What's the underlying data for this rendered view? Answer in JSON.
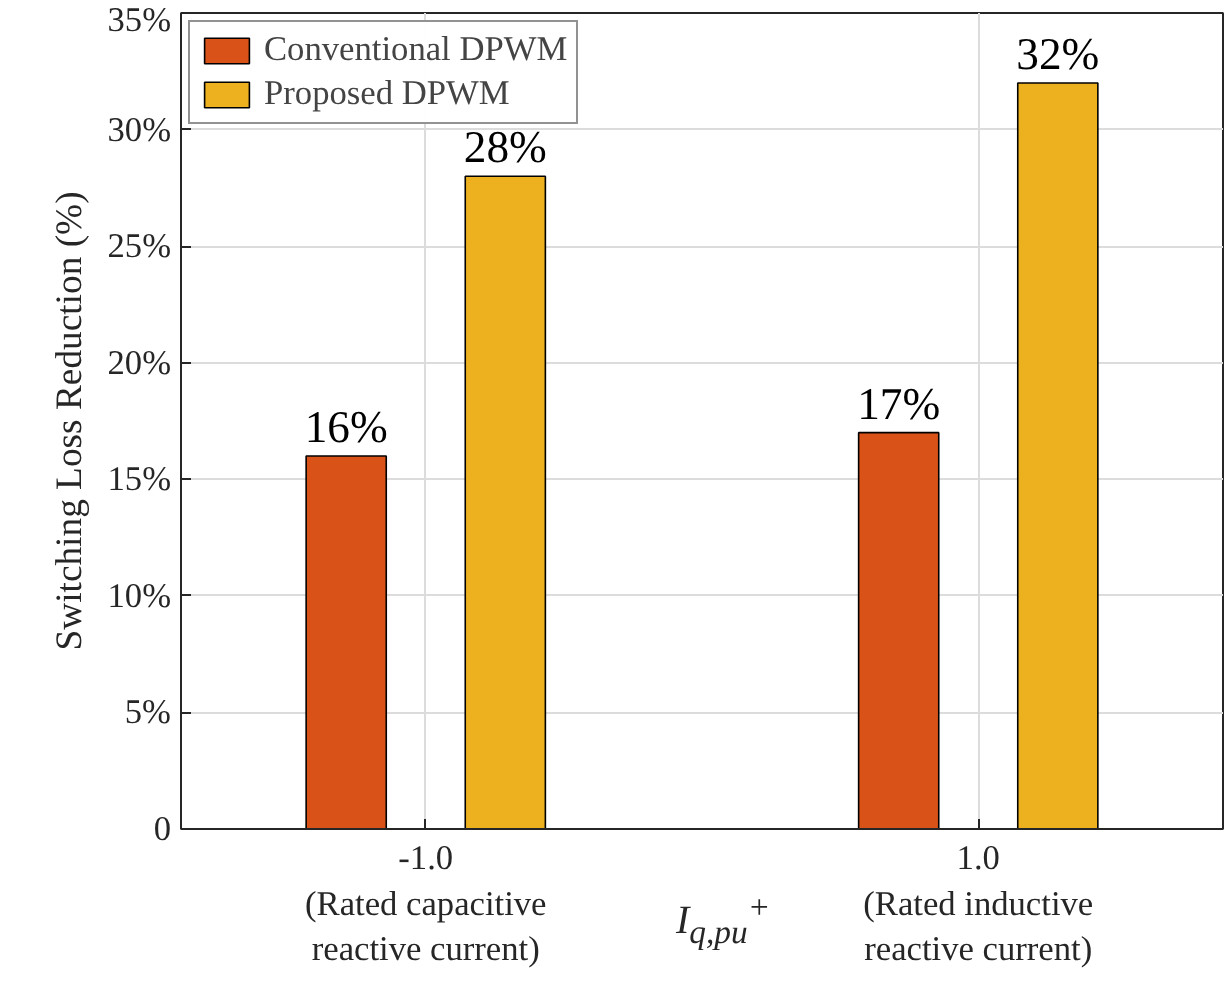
{
  "chart_data": {
    "type": "bar",
    "categories": [
      "-1.0\n(Rated capacitive\nreactive current)",
      "1.0\n(Rated inductive\nreactive current)"
    ],
    "series": [
      {
        "name": "Conventional DPWM",
        "color": "#d95319",
        "values": [
          16,
          17
        ],
        "value_labels": [
          "16%",
          "17%"
        ]
      },
      {
        "name": "Proposed DPWM",
        "color": "#edb120",
        "values": [
          28,
          32
        ],
        "value_labels": [
          "28%",
          "32%"
        ]
      }
    ],
    "xlabel": "I$_{q,pu}$$^{+}$",
    "ylabel": "Switching Loss Reduction (%)",
    "ylim": [
      0,
      35
    ],
    "yticks": [
      0,
      {
        "value": 5,
        "label": "5%"
      },
      {
        "value": 10,
        "label": "10%"
      },
      {
        "value": 15,
        "label": "15%"
      },
      {
        "value": 20,
        "label": "20%"
      },
      {
        "value": 25,
        "label": "25%"
      },
      {
        "value": 30,
        "label": "30%"
      },
      {
        "value": 35,
        "label": "35%"
      }
    ],
    "grid": true,
    "legend": "top left"
  }
}
